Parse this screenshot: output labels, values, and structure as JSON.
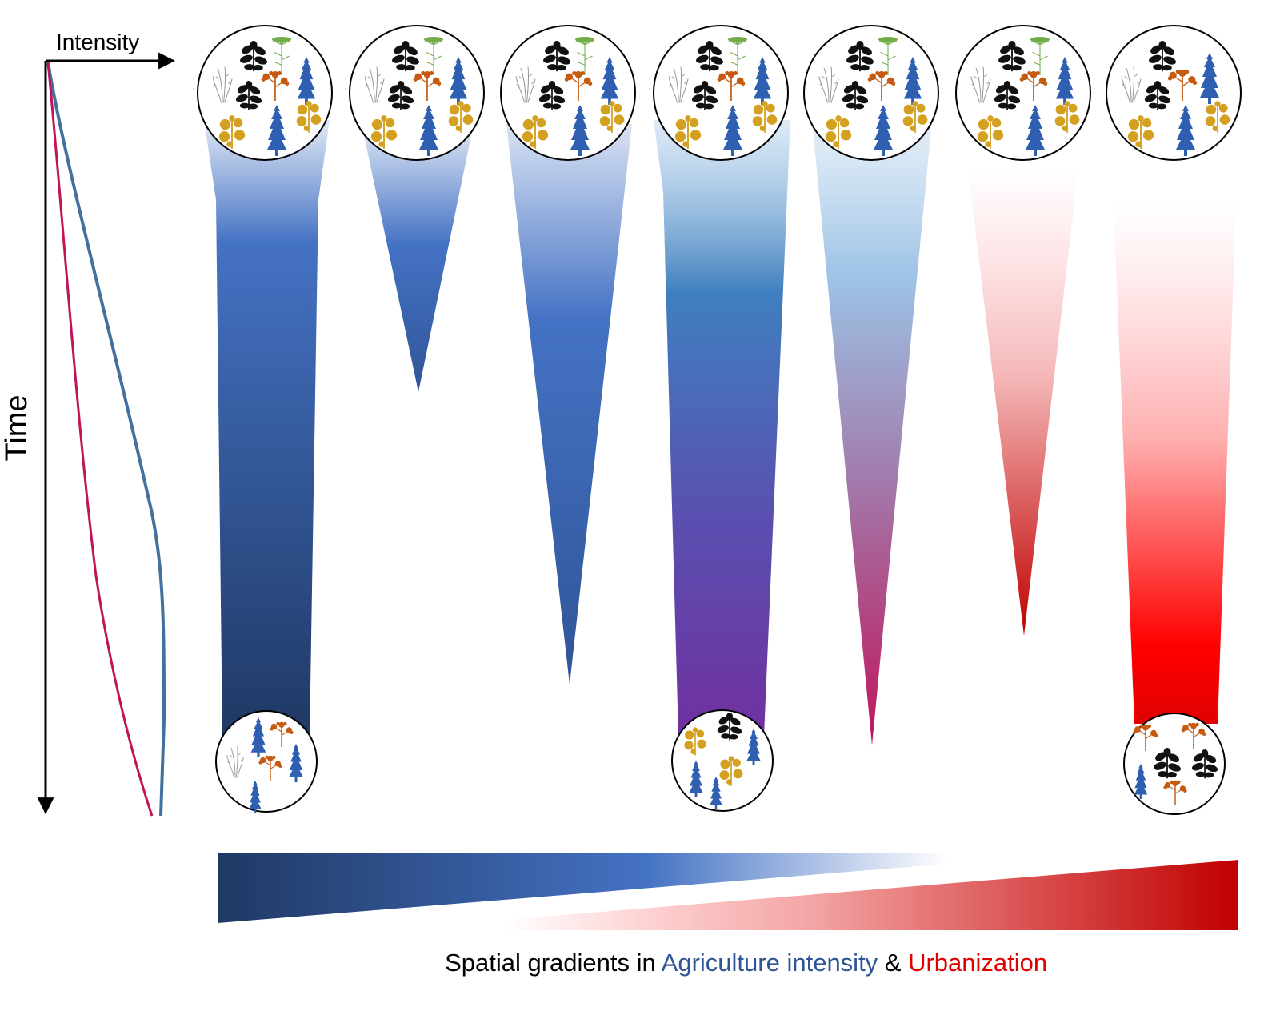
{
  "axes": {
    "x_label": "Intensity",
    "y_label": "Time"
  },
  "caption": {
    "prefix": "Spatial gradients in ",
    "agriculture": "Agriculture intensity",
    "connector": " & ",
    "urbanization": "Urbanization"
  },
  "colors": {
    "agriculture": "#2f5597",
    "agriculture_light": "#4472c4",
    "urbanization": "#c00000",
    "urban_bright": "#ff0000",
    "purple": "#7030a0",
    "intensity_line_agri": "#41719c",
    "intensity_line_urban": "#c0145a"
  },
  "intensity_curves": [
    {
      "series": "agriculture",
      "color": "#41719c"
    },
    {
      "series": "urbanization",
      "color": "#c0145a"
    }
  ],
  "plant_icons": [
    "grass-icon",
    "black-leaf-icon",
    "green-umbel-icon",
    "orange-leaf-icon",
    "blue-conifer-icon",
    "yellow-leaf-icon"
  ],
  "communities": [
    {
      "id": "c1",
      "top_species": [
        "grass",
        "black",
        "green",
        "orange",
        "blue",
        "yellow"
      ],
      "bottom_species": [
        "grass",
        "blue",
        "orange",
        "blue"
      ]
    },
    {
      "id": "c2",
      "top_species": [
        "grass",
        "black",
        "green",
        "orange",
        "blue",
        "yellow"
      ],
      "bottom_species": []
    },
    {
      "id": "c3",
      "top_species": [
        "grass",
        "black",
        "green",
        "orange",
        "blue",
        "yellow"
      ],
      "bottom_species": []
    },
    {
      "id": "c4",
      "top_species": [
        "grass",
        "black",
        "green",
        "orange",
        "blue",
        "yellow"
      ],
      "bottom_species": [
        "yellow",
        "black",
        "blue"
      ]
    },
    {
      "id": "c5",
      "top_species": [
        "grass",
        "black",
        "green",
        "orange",
        "blue",
        "yellow"
      ],
      "bottom_species": []
    },
    {
      "id": "c6",
      "top_species": [
        "grass",
        "black",
        "green",
        "orange",
        "blue",
        "yellow"
      ],
      "bottom_species": []
    },
    {
      "id": "c7",
      "top_species": [
        "grass",
        "black",
        "orange",
        "blue",
        "yellow"
      ],
      "bottom_species": [
        "orange",
        "black",
        "blue"
      ]
    }
  ]
}
